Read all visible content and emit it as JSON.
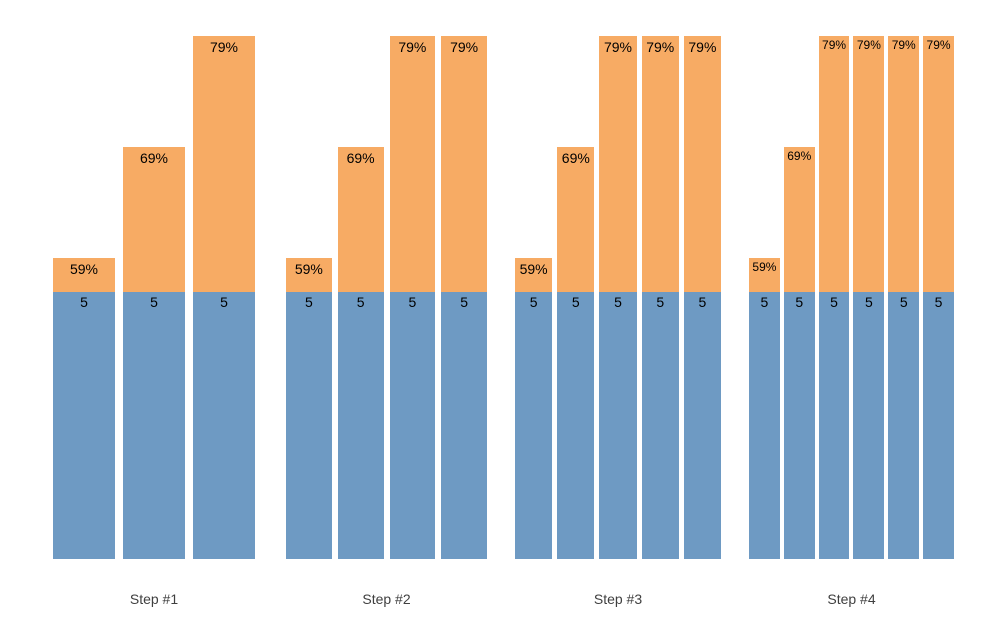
{
  "chart_data": {
    "type": "bar",
    "stacked": true,
    "title": "",
    "xlabel": "",
    "ylabel": "",
    "legend": "none",
    "grid": false,
    "background_color": "#ffffff",
    "colors": {
      "base_segment": "#6e9ac3",
      "top_segment": "#f7ab64",
      "bar_value_text": "#000000",
      "axis_label_text": "#3f3f3f"
    },
    "base_value": 5,
    "categories": [
      "Step #1",
      "Step #2",
      "Step #3",
      "Step #4"
    ],
    "groups": [
      {
        "label": "Step #1",
        "bars": [
          {
            "base": 5,
            "base_label": "5",
            "percent": 59,
            "percent_label": "59%"
          },
          {
            "base": 5,
            "base_label": "5",
            "percent": 69,
            "percent_label": "69%"
          },
          {
            "base": 5,
            "base_label": "5",
            "percent": 79,
            "percent_label": "79%"
          }
        ]
      },
      {
        "label": "Step #2",
        "bars": [
          {
            "base": 5,
            "base_label": "5",
            "percent": 59,
            "percent_label": "59%"
          },
          {
            "base": 5,
            "base_label": "5",
            "percent": 69,
            "percent_label": "69%"
          },
          {
            "base": 5,
            "base_label": "5",
            "percent": 79,
            "percent_label": "79%"
          },
          {
            "base": 5,
            "base_label": "5",
            "percent": 79,
            "percent_label": "79%"
          }
        ]
      },
      {
        "label": "Step #3",
        "bars": [
          {
            "base": 5,
            "base_label": "5",
            "percent": 59,
            "percent_label": "59%"
          },
          {
            "base": 5,
            "base_label": "5",
            "percent": 69,
            "percent_label": "69%"
          },
          {
            "base": 5,
            "base_label": "5",
            "percent": 79,
            "percent_label": "79%"
          },
          {
            "base": 5,
            "base_label": "5",
            "percent": 79,
            "percent_label": "79%"
          },
          {
            "base": 5,
            "base_label": "5",
            "percent": 79,
            "percent_label": "79%"
          }
        ]
      },
      {
        "label": "Step #4",
        "bars": [
          {
            "base": 5,
            "base_label": "5",
            "percent": 59,
            "percent_label": "59%"
          },
          {
            "base": 5,
            "base_label": "5",
            "percent": 69,
            "percent_label": "69%"
          },
          {
            "base": 5,
            "base_label": "5",
            "percent": 79,
            "percent_label": "79%"
          },
          {
            "base": 5,
            "base_label": "5",
            "percent": 79,
            "percent_label": "79%"
          },
          {
            "base": 5,
            "base_label": "5",
            "percent": 79,
            "percent_label": "79%"
          },
          {
            "base": 5,
            "base_label": "5",
            "percent": 79,
            "percent_label": "79%"
          }
        ]
      }
    ]
  }
}
